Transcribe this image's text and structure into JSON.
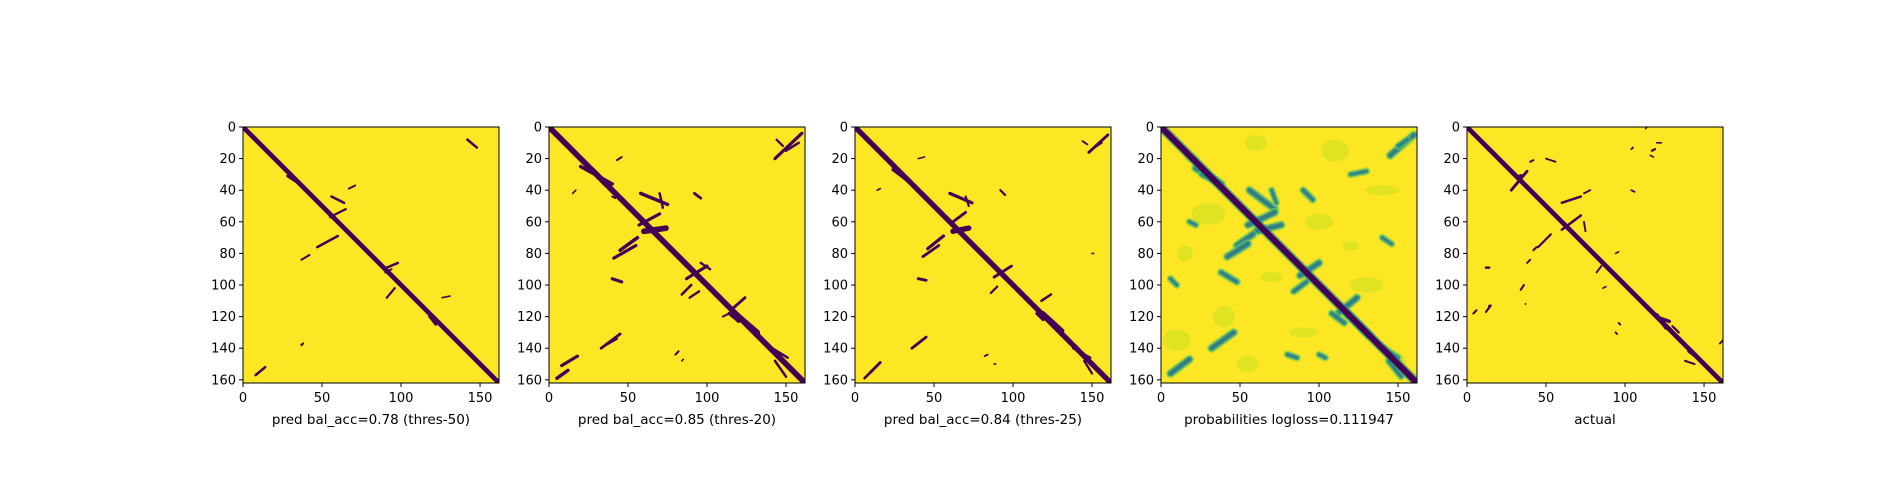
{
  "colors": {
    "background": "#fde725",
    "contact": "#440154",
    "mid_teal": "#21918c",
    "light_green": "#7ad151",
    "pale": "#c8e020"
  },
  "chart_data": [
    {
      "type": "heatmap",
      "xlabel": "pred bal_acc=0.78 (thres-50)",
      "xlim": [
        0,
        162
      ],
      "ylim": [
        162,
        0
      ],
      "xticks": [
        "0",
        "50",
        "100",
        "150"
      ],
      "yticks": [
        "0",
        "20",
        "40",
        "60",
        "80",
        "100",
        "120",
        "140",
        "160"
      ],
      "diagonal_width": 3.0,
      "segments": [
        [
          142,
          8,
          148,
          13,
          1.6
        ],
        [
          28,
          31,
          34,
          35,
          1.5
        ],
        [
          56,
          44,
          64,
          48,
          1.6
        ],
        [
          67,
          39,
          71,
          37,
          1.2
        ],
        [
          55,
          57,
          65,
          52,
          1.4
        ],
        [
          47,
          76,
          60,
          69,
          1.6
        ],
        [
          37,
          84,
          42,
          81,
          1.3
        ],
        [
          91,
          89,
          98,
          86,
          1.6
        ],
        [
          90,
          92,
          94,
          90,
          1.2
        ],
        [
          91,
          108,
          96,
          102,
          1.4
        ],
        [
          126,
          108,
          131,
          107,
          1.0
        ],
        [
          118,
          120,
          122,
          125,
          1.6
        ],
        [
          37,
          138,
          38,
          137,
          1.4
        ],
        [
          8,
          157,
          14,
          152,
          1.6
        ]
      ],
      "gradient": false
    },
    {
      "type": "heatmap",
      "xlabel": "pred bal_acc=0.85 (thres-20)",
      "xlim": [
        0,
        162
      ],
      "ylim": [
        162,
        0
      ],
      "xticks": [
        "0",
        "50",
        "100",
        "150"
      ],
      "yticks": [
        "0",
        "20",
        "40",
        "60",
        "80",
        "100",
        "120",
        "140",
        "160"
      ],
      "diagonal_width": 3.6,
      "segments": [
        [
          143,
          20,
          160,
          4,
          2.0
        ],
        [
          150,
          15,
          158,
          10,
          1.6
        ],
        [
          144,
          8,
          148,
          12,
          1.4
        ],
        [
          20,
          25,
          40,
          36,
          2.2
        ],
        [
          27,
          27,
          36,
          36,
          3.6
        ],
        [
          43,
          21,
          46,
          19,
          1.2
        ],
        [
          17,
          40,
          15,
          42,
          1.0
        ],
        [
          40,
          44,
          42,
          45,
          1.2
        ],
        [
          58,
          42,
          75,
          49,
          2.2
        ],
        [
          72,
          51,
          70,
          42,
          1.6
        ],
        [
          92,
          42,
          96,
          45,
          1.8
        ],
        [
          57,
          62,
          70,
          55,
          2.0
        ],
        [
          60,
          66,
          74,
          64,
          3.6
        ],
        [
          45,
          78,
          56,
          70,
          2.2
        ],
        [
          41,
          83,
          55,
          75,
          2.0
        ],
        [
          87,
          96,
          100,
          88,
          2.0
        ],
        [
          96,
          86,
          102,
          90,
          1.5
        ],
        [
          40,
          96,
          46,
          98,
          2.0
        ],
        [
          84,
          106,
          90,
          100,
          1.6
        ],
        [
          89,
          108,
          95,
          104,
          1.5
        ],
        [
          115,
          116,
          124,
          108,
          1.8
        ],
        [
          110,
          120,
          114,
          118,
          1.2
        ],
        [
          118,
          118,
          132,
          130,
          3.2
        ],
        [
          114,
          118,
          120,
          123,
          2.0
        ],
        [
          138,
          138,
          151,
          146,
          1.6
        ],
        [
          143,
          148,
          150,
          158,
          1.6
        ],
        [
          8,
          151,
          18,
          145,
          2.0
        ],
        [
          5,
          159,
          12,
          154,
          2.2
        ],
        [
          33,
          140,
          45,
          131,
          1.8
        ],
        [
          36,
          138,
          43,
          134,
          1.4
        ],
        [
          80,
          144,
          82,
          142,
          1.3
        ],
        [
          84,
          148,
          85,
          147,
          1.0
        ]
      ],
      "gradient": false
    },
    {
      "type": "heatmap",
      "xlabel": "pred bal_acc=0.84 (thres-25)",
      "xlim": [
        0,
        162
      ],
      "ylim": [
        162,
        0
      ],
      "xticks": [
        "0",
        "50",
        "100",
        "150"
      ],
      "yticks": [
        "0",
        "20",
        "40",
        "60",
        "80",
        "100",
        "120",
        "140",
        "160"
      ],
      "diagonal_width": 3.4,
      "segments": [
        [
          148,
          16,
          160,
          5,
          1.8
        ],
        [
          150,
          14,
          156,
          10,
          1.4
        ],
        [
          144,
          9,
          147,
          11,
          1.2
        ],
        [
          24,
          27,
          36,
          36,
          2.0
        ],
        [
          27,
          28,
          34,
          34,
          3.2
        ],
        [
          40,
          20,
          44,
          19,
          1.0
        ],
        [
          14,
          40,
          16,
          39,
          1.0
        ],
        [
          60,
          42,
          74,
          48,
          2.0
        ],
        [
          72,
          50,
          70,
          44,
          1.4
        ],
        [
          92,
          40,
          95,
          43,
          1.4
        ],
        [
          62,
          60,
          70,
          54,
          1.8
        ],
        [
          62,
          66,
          72,
          64,
          3.4
        ],
        [
          46,
          77,
          56,
          69,
          2.0
        ],
        [
          43,
          82,
          53,
          75,
          1.8
        ],
        [
          88,
          95,
          99,
          88,
          1.8
        ],
        [
          40,
          96,
          45,
          97,
          1.8
        ],
        [
          86,
          105,
          90,
          101,
          1.4
        ],
        [
          118,
          110,
          124,
          106,
          1.6
        ],
        [
          119,
          118,
          131,
          129,
          3.0
        ],
        [
          115,
          118,
          119,
          122,
          1.8
        ],
        [
          138,
          140,
          149,
          146,
          1.4
        ],
        [
          145,
          148,
          150,
          156,
          1.4
        ],
        [
          10,
          155,
          16,
          149,
          1.8
        ],
        [
          6,
          159,
          10,
          155,
          1.6
        ],
        [
          36,
          140,
          45,
          133,
          1.8
        ],
        [
          82,
          145,
          84,
          144,
          1.1
        ],
        [
          150,
          80,
          151,
          80,
          1.0
        ],
        [
          88,
          150,
          89,
          150,
          1.0
        ]
      ],
      "gradient": false
    },
    {
      "type": "heatmap",
      "xlabel": "probabilities logloss=0.111947",
      "xlim": [
        0,
        162
      ],
      "ylim": [
        162,
        0
      ],
      "xticks": [
        "0",
        "50",
        "100",
        "150"
      ],
      "yticks": [
        "0",
        "20",
        "40",
        "60",
        "80",
        "100",
        "120",
        "140",
        "160"
      ],
      "diagonal_width": 3.8,
      "segments": [
        [
          145,
          18,
          160,
          5,
          3.0
        ],
        [
          150,
          12,
          156,
          8,
          2.0
        ],
        [
          22,
          26,
          38,
          36,
          3.2
        ],
        [
          26,
          30,
          34,
          34,
          2.5
        ],
        [
          56,
          40,
          72,
          52,
          3.0
        ],
        [
          70,
          40,
          73,
          48,
          2.0
        ],
        [
          90,
          40,
          96,
          46,
          2.4
        ],
        [
          55,
          62,
          72,
          54,
          3.0
        ],
        [
          60,
          66,
          76,
          62,
          3.0
        ],
        [
          48,
          75,
          58,
          68,
          3.0
        ],
        [
          42,
          82,
          55,
          74,
          3.0
        ],
        [
          38,
          92,
          48,
          98,
          2.5
        ],
        [
          88,
          94,
          100,
          86,
          3.0
        ],
        [
          84,
          104,
          92,
          98,
          2.4
        ],
        [
          112,
          118,
          124,
          108,
          3.0
        ],
        [
          118,
          118,
          132,
          132,
          3.4
        ],
        [
          108,
          118,
          116,
          124,
          2.4
        ],
        [
          138,
          138,
          150,
          146,
          2.2
        ],
        [
          144,
          148,
          152,
          158,
          2.2
        ],
        [
          6,
          156,
          18,
          147,
          3.0
        ],
        [
          32,
          140,
          46,
          130,
          3.0
        ],
        [
          80,
          144,
          86,
          146,
          2.2
        ],
        [
          120,
          30,
          130,
          28,
          2.0
        ],
        [
          18,
          60,
          22,
          62,
          2.0
        ],
        [
          6,
          96,
          10,
          100,
          2.0
        ],
        [
          100,
          144,
          104,
          146,
          2.0
        ],
        [
          140,
          70,
          146,
          74,
          2.0
        ]
      ],
      "gradient": true
    },
    {
      "type": "heatmap",
      "xlabel": "actual",
      "xlim": [
        0,
        162
      ],
      "ylim": [
        162,
        0
      ],
      "xticks": [
        "0",
        "50",
        "100",
        "150"
      ],
      "yticks": [
        "0",
        "20",
        "40",
        "60",
        "80",
        "100",
        "120",
        "140",
        "160"
      ],
      "diagonal_width": 3.0,
      "segments": [
        [
          20,
          20,
          40,
          40,
          1.8
        ],
        [
          28,
          40,
          38,
          28,
          1.8
        ],
        [
          32,
          32,
          34,
          31,
          2.4
        ],
        [
          40,
          22,
          42,
          21,
          1.3
        ],
        [
          50,
          20,
          56,
          22,
          1.2
        ],
        [
          104,
          14,
          105,
          13,
          1.2
        ],
        [
          117,
          15,
          119,
          14,
          1.4
        ],
        [
          116,
          18,
          118,
          19,
          1.0
        ],
        [
          123,
          10,
          120,
          10,
          1.0
        ],
        [
          113,
          1,
          114,
          0,
          0.9
        ],
        [
          60,
          48,
          72,
          44,
          1.6
        ],
        [
          74,
          42,
          78,
          40,
          1.2
        ],
        [
          104,
          40,
          106,
          41,
          1.2
        ],
        [
          60,
          65,
          72,
          56,
          1.6
        ],
        [
          75,
          66,
          74,
          60,
          1.2
        ],
        [
          45,
          76,
          53,
          68,
          1.4
        ],
        [
          42,
          78,
          44,
          76,
          1.3
        ],
        [
          38,
          86,
          40,
          84,
          1.2
        ],
        [
          94,
          80,
          96,
          79,
          1.0
        ],
        [
          12,
          89,
          14,
          89,
          1.6
        ],
        [
          82,
          92,
          85,
          88,
          1.2
        ],
        [
          34,
          103,
          36,
          100,
          1.3
        ],
        [
          86,
          102,
          88,
          101,
          1.0
        ],
        [
          37,
          112,
          37,
          112,
          1.2
        ],
        [
          14,
          113,
          14,
          114,
          1.2
        ],
        [
          12,
          117,
          15,
          113,
          1.4
        ],
        [
          4,
          118,
          6,
          116,
          1.3
        ],
        [
          120,
          119,
          126,
          127,
          2.6
        ],
        [
          122,
          121,
          128,
          123,
          2.2
        ],
        [
          96,
          124,
          97,
          125,
          1.2
        ],
        [
          94,
          130,
          95,
          131,
          1.2
        ],
        [
          130,
          126,
          134,
          130,
          1.4
        ],
        [
          140,
          142,
          148,
          148,
          1.4
        ],
        [
          162,
          135,
          160,
          137,
          1.2
        ],
        [
          138,
          148,
          144,
          150,
          1.3
        ]
      ],
      "gradient": false
    }
  ]
}
